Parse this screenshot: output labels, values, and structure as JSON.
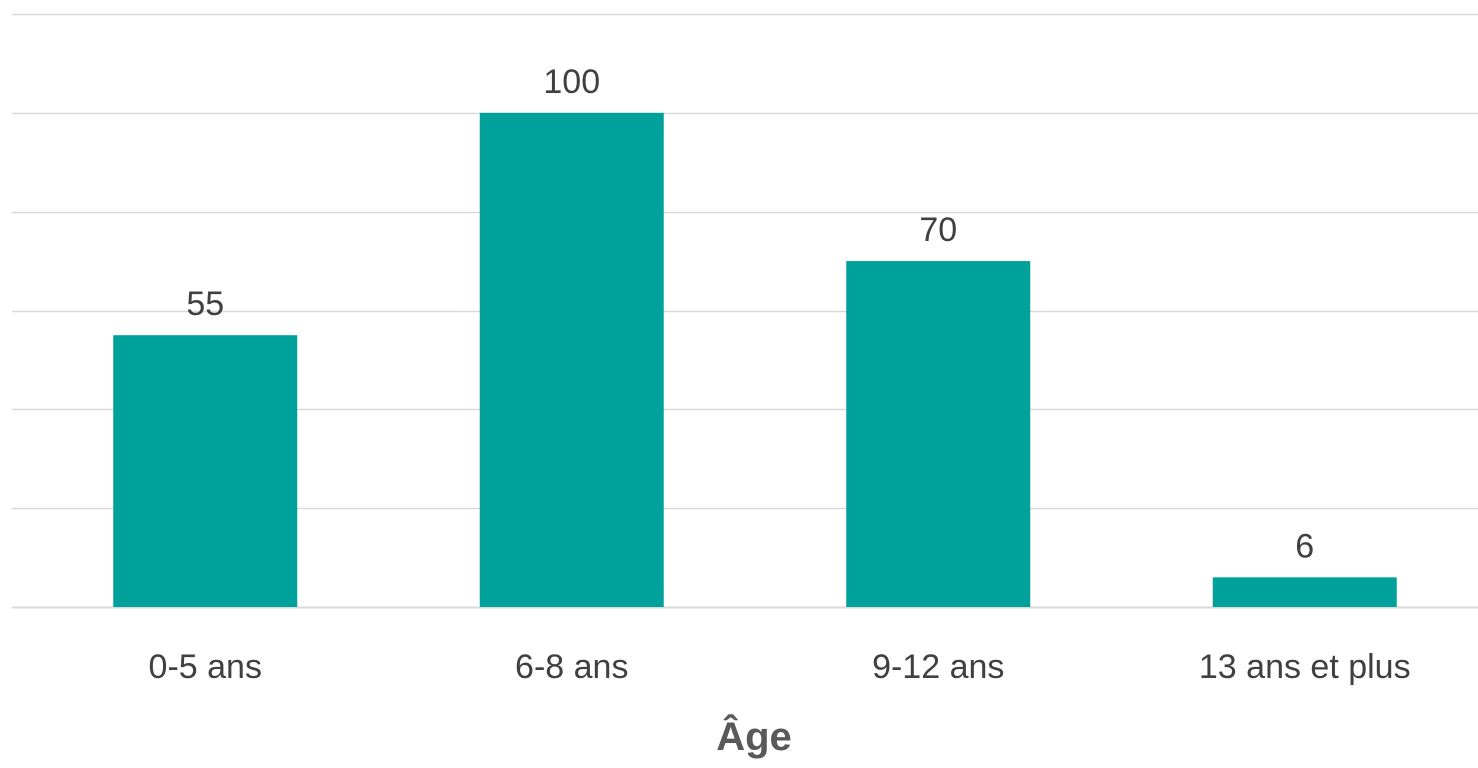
{
  "chart_data": {
    "type": "bar",
    "title": "",
    "xlabel": "Âge",
    "ylabel": "",
    "categories": [
      "0-5 ans",
      "6-8 ans",
      "9-12 ans",
      "13 ans et plus"
    ],
    "values": [
      55,
      100,
      70,
      6
    ],
    "ylim": [
      0,
      120
    ],
    "grid": true,
    "legend": "none",
    "colors": {
      "bar": "#00A19A",
      "grid": "#D9D9D9",
      "text": "#404040",
      "axis_title": "#595959"
    }
  }
}
